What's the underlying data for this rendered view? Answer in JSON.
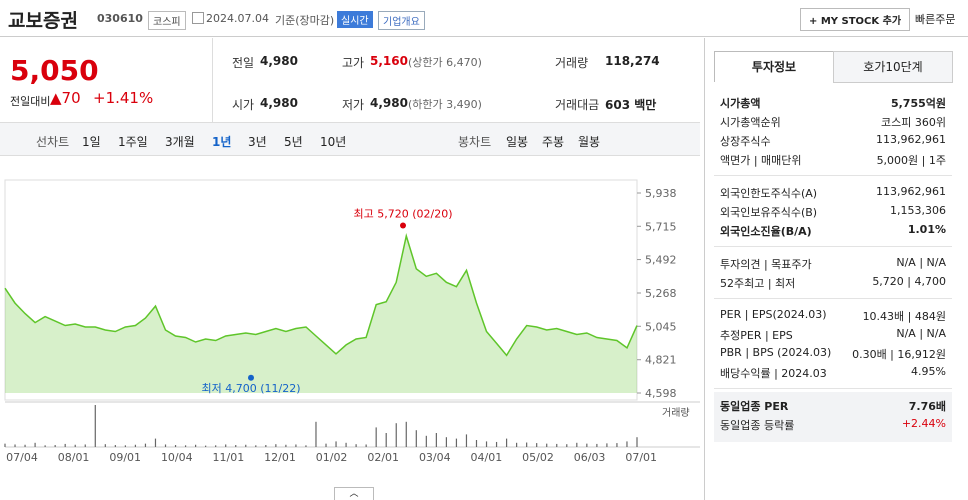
{
  "header": {
    "name": "교보증권",
    "code": "030610",
    "market": "코스피",
    "date": "2024.07.04",
    "basis": "기준(장마감)",
    "realtime": "실시간",
    "company_info": "기업개요",
    "my_stock": "+ MY STOCK 추가",
    "quick_order": "빠른주문"
  },
  "quote": {
    "price": "5,050",
    "change_label": "전일대비",
    "change": "▲70",
    "change_pct": "+1.41%"
  },
  "summary": [
    {
      "label": "전일",
      "value": "4,980"
    },
    {
      "label": "고가",
      "value": "5,160",
      "note": "(상한가 6,470)"
    },
    {
      "label": "거래량",
      "value": "118,274"
    },
    {
      "label": "시가",
      "value": "4,980"
    },
    {
      "label": "저가",
      "value": "4,980",
      "note": "(하한가 3,490)"
    },
    {
      "label": "거래대금",
      "value": "603 백만"
    }
  ],
  "line_tabs": {
    "label": "선차트",
    "items": [
      "1일",
      "1주일",
      "3개월",
      "1년",
      "3년",
      "5년",
      "10년"
    ],
    "active": 3
  },
  "candle_tabs": {
    "label": "봉차트",
    "items": [
      "일봉",
      "주봉",
      "월봉"
    ]
  },
  "chart_data": {
    "type": "area",
    "color": "#5fc52a",
    "ylim": [
      4598,
      5938
    ],
    "yticks": [
      {
        "value": 5938,
        "label": "5,938"
      },
      {
        "value": 5715,
        "label": "5,715"
      },
      {
        "value": 5492,
        "label": "5,492"
      },
      {
        "value": 5268,
        "label": "5,268"
      },
      {
        "value": 5045,
        "label": "5,045"
      },
      {
        "value": 4821,
        "label": "4,821"
      },
      {
        "value": 4598,
        "label": "4,598"
      }
    ],
    "x_labels": [
      "07/04",
      "08/01",
      "09/01",
      "10/04",
      "11/01",
      "12/01",
      "01/02",
      "02/01",
      "03/04",
      "04/01",
      "05/02",
      "06/03",
      "07/01"
    ],
    "values": [
      5300,
      5200,
      5130,
      5070,
      5110,
      5080,
      5050,
      5060,
      5040,
      5040,
      5020,
      5010,
      5040,
      5050,
      5100,
      5180,
      5020,
      4980,
      4970,
      4940,
      4960,
      4950,
      4980,
      4990,
      5000,
      4990,
      5010,
      5030,
      5010,
      5030,
      5040,
      4980,
      4920,
      4860,
      4920,
      4960,
      4970,
      5190,
      5210,
      5340,
      5650,
      5430,
      5380,
      5400,
      5340,
      5310,
      5420,
      5200,
      5010,
      4930,
      4850,
      4960,
      5050,
      5040,
      5020,
      5030,
      5010,
      4990,
      5000,
      4970,
      4960,
      4950,
      4900,
      5050
    ],
    "volume": [
      120,
      90,
      80,
      150,
      60,
      70,
      110,
      80,
      90,
      1500,
      100,
      70,
      60,
      80,
      120,
      300,
      90,
      70,
      60,
      80,
      50,
      60,
      90,
      70,
      80,
      60,
      70,
      100,
      80,
      90,
      60,
      900,
      120,
      200,
      150,
      100,
      90,
      700,
      500,
      850,
      900,
      600,
      400,
      500,
      350,
      300,
      450,
      250,
      200,
      180,
      300,
      150,
      160,
      140,
      120,
      110,
      100,
      150,
      120,
      110,
      130,
      140,
      200,
      350
    ],
    "volume_label": "거래량",
    "high": 5720,
    "high_note": "최고 5,720 (02/20)",
    "high_color": "#d9000c",
    "low": 4700,
    "low_note": "최저 4,700 (11/22)",
    "low_color": "#1463c9"
  },
  "panel": {
    "tabs": [
      "투자정보",
      "호가10단계"
    ],
    "sections": [
      [
        {
          "label": "시가총액",
          "value": "5,755억원",
          "bold": true
        },
        {
          "label": "시가총액순위",
          "value": "코스피 360위"
        },
        {
          "label": "상장주식수",
          "value": "113,962,961"
        },
        {
          "label": "액면가 | 매매단위",
          "value": "5,000원 | 1주"
        }
      ],
      [
        {
          "label": "외국인한도주식수(A)",
          "value": "113,962,961"
        },
        {
          "label": "외국인보유주식수(B)",
          "value": "1,153,306"
        },
        {
          "label": "외국인소진율(B/A)",
          "value": "1.01%",
          "bold": true
        }
      ],
      [
        {
          "label": "투자의견 | 목표주가",
          "value": "N/A | N/A"
        },
        {
          "label": "52주최고 | 최저",
          "value": "5,720 | 4,700"
        }
      ],
      [
        {
          "label": "PER | EPS(2024.03)",
          "value": "10.43배 | 484원"
        },
        {
          "label": "추정PER | EPS",
          "value": "N/A | N/A"
        },
        {
          "label": "PBR | BPS (2024.03)",
          "value": "0.30배 | 16,912원"
        },
        {
          "label": "배당수익률 | 2024.03",
          "value": "4.95%"
        }
      ],
      [
        {
          "label": "동일업종 PER",
          "value": "7.76배",
          "bold": true
        },
        {
          "label": "동일업종 등락률",
          "value": "+2.44%",
          "color": "#d9000c"
        }
      ]
    ]
  }
}
